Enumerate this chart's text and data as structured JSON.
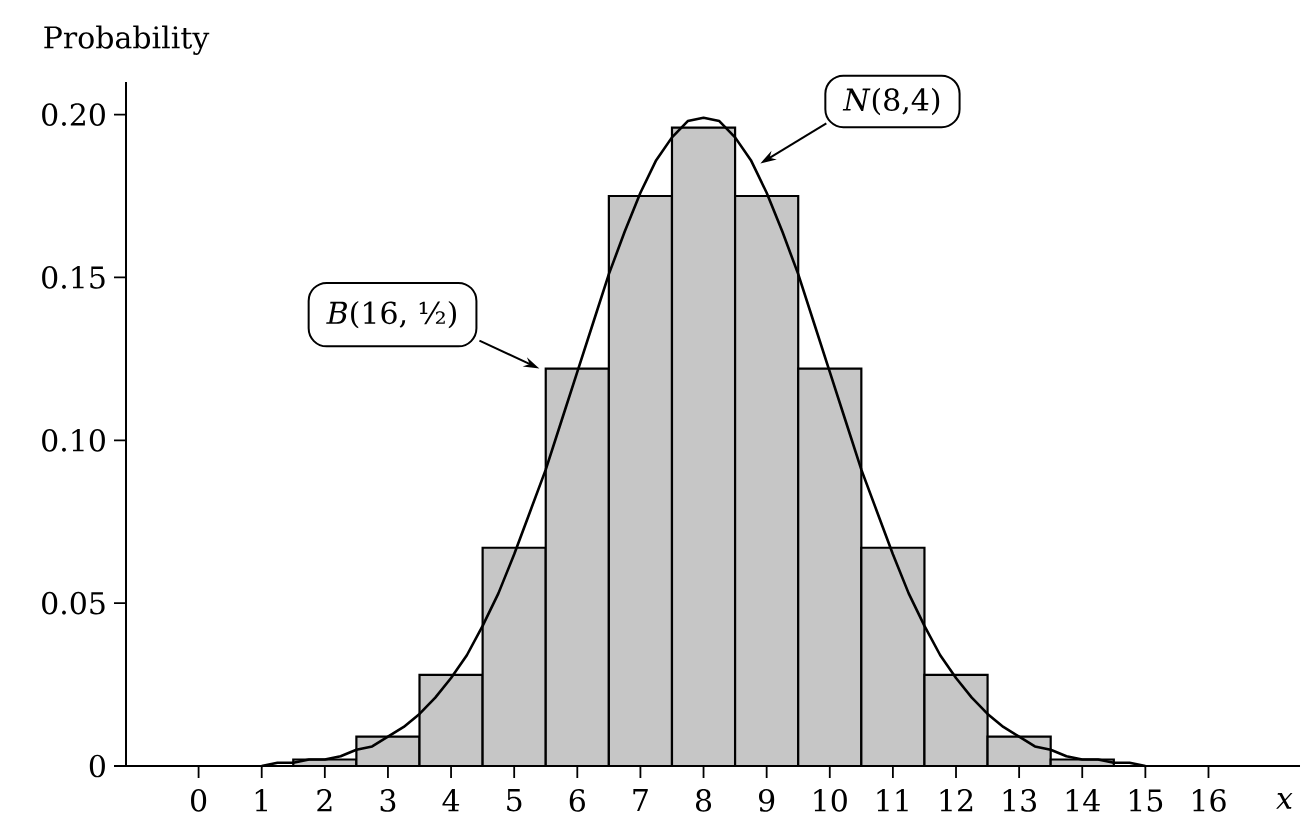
{
  "chart_data": {
    "type": "histogram",
    "xlabel": "x",
    "ylabel": "Probability",
    "xlim": [
      -1.15,
      17.45
    ],
    "ylim": [
      0,
      0.21
    ],
    "xticks": [
      0,
      1,
      2,
      3,
      4,
      5,
      6,
      7,
      8,
      9,
      10,
      11,
      12,
      13,
      14,
      15,
      16
    ],
    "yticks": [
      0,
      0.05,
      {
        "value": 0.1,
        "label": "0.10"
      },
      0.15,
      {
        "value": 0.2,
        "label": "0.20"
      }
    ],
    "series": [
      {
        "color": "#c6c6c6",
        "bins": [
          -0.5,
          0.5,
          1.5,
          2.5,
          3.5,
          4.5,
          5.5,
          6.5,
          7.5,
          8.5,
          9.5,
          10.5,
          11.5,
          12.5,
          13.5,
          14.5,
          15.5,
          16.5
        ],
        "values": [
          0,
          0,
          0.002,
          0.009,
          0.028,
          0.067,
          0.122,
          0.175,
          0.196,
          0.175,
          0.122,
          0.067,
          0.028,
          0.009,
          0.002,
          0,
          0
        ]
      },
      {
        "type": "line",
        "color": "#000000",
        "x": [
          1,
          1.25,
          1.5,
          1.75,
          2,
          2.25,
          2.5,
          2.75,
          3,
          3.25,
          3.5,
          3.75,
          4,
          4.25,
          4.5,
          4.75,
          5,
          5.25,
          5.5,
          5.75,
          6,
          6.25,
          6.5,
          6.75,
          7,
          7.25,
          7.5,
          7.75,
          8,
          8.25,
          8.5,
          8.75,
          9,
          9.25,
          9.5,
          9.75,
          10,
          10.25,
          10.5,
          10.75,
          11,
          11.25,
          11.5,
          11.75,
          12,
          12.25,
          12.5,
          12.75,
          13,
          13.25,
          13.5,
          13.75,
          14,
          14.25,
          14.5,
          14.75,
          15
        ],
        "values": [
          0,
          0.001,
          0.001,
          0.002,
          0.002,
          0.003,
          0.005,
          0.006,
          0.009,
          0.012,
          0.016,
          0.021,
          0.027,
          0.034,
          0.043,
          0.053,
          0.065,
          0.078,
          0.091,
          0.106,
          0.121,
          0.136,
          0.151,
          0.164,
          0.176,
          0.186,
          0.193,
          0.198,
          0.199,
          0.198,
          0.193,
          0.186,
          0.176,
          0.164,
          0.151,
          0.136,
          0.121,
          0.106,
          0.091,
          0.078,
          0.065,
          0.053,
          0.043,
          0.034,
          0.027,
          0.021,
          0.016,
          0.012,
          0.009,
          0.006,
          0.005,
          0.003,
          0.002,
          0.002,
          0.001,
          0.001,
          0
        ]
      }
    ],
    "annotations": [
      {
        "text": "*B*(16, ½)",
        "x": 5.4,
        "y": 0.122
      },
      {
        "text": "*N*(8,4)",
        "x": 8.9,
        "y": 0.185
      }
    ]
  }
}
